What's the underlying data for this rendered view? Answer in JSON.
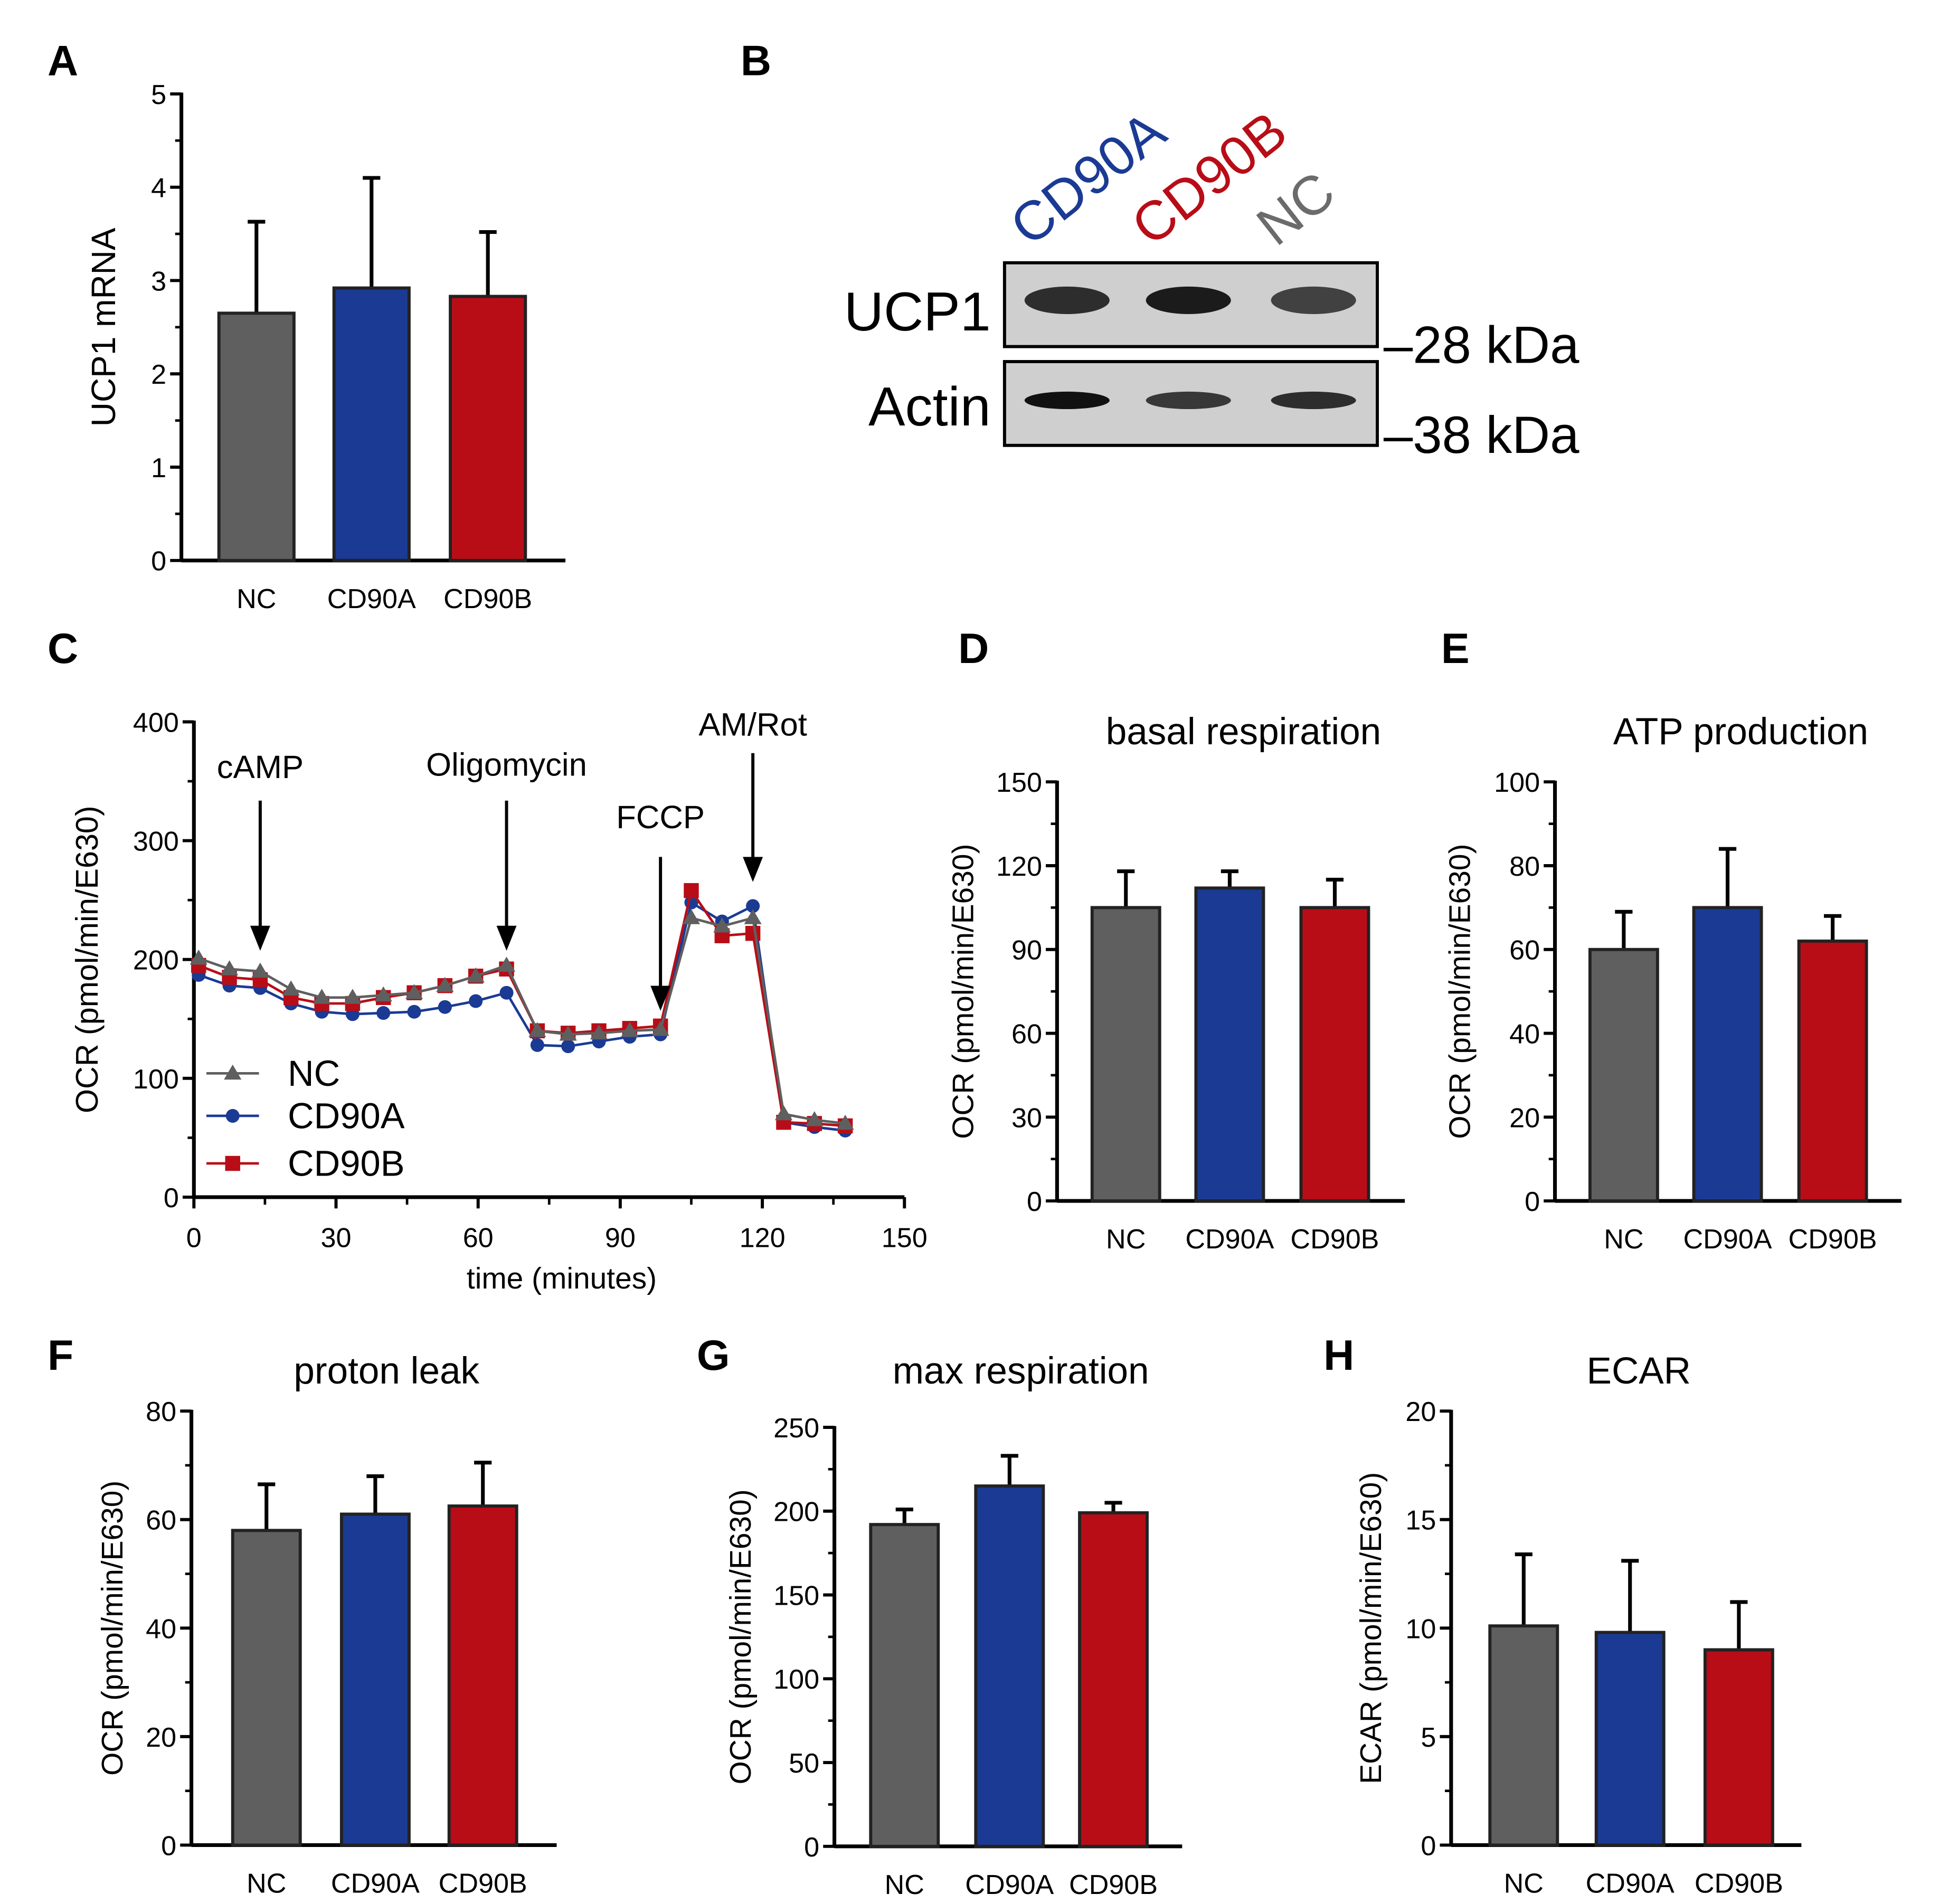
{
  "colors": {
    "NC": "#5f5f5f",
    "CD90A": "#1a3a94",
    "CD90B": "#b80d17",
    "NC_label": "#6b6b6b"
  },
  "panel_labels": [
    "A",
    "B",
    "C",
    "D",
    "E",
    "F",
    "G",
    "H"
  ],
  "western_blot": {
    "lanes": [
      "CD90A",
      "CD90B",
      "NC"
    ],
    "rows": [
      "UCP1",
      "Actin"
    ],
    "markers": [
      "–28 kDa",
      "–38 kDa"
    ]
  },
  "chart_data": [
    {
      "id": "A",
      "type": "bar",
      "title": "",
      "ylabel": "UCP1 mRNA",
      "xlabel": "",
      "categories": [
        "NC",
        "CD90A",
        "CD90B"
      ],
      "values": [
        2.65,
        2.92,
        2.83
      ],
      "error_upper": [
        3.63,
        4.1,
        3.52
      ],
      "ylim": [
        0,
        5
      ],
      "yticks": [
        "0",
        "1",
        "2",
        "3",
        "4",
        "5"
      ]
    },
    {
      "id": "C",
      "type": "line",
      "title": "",
      "ylabel": "OCR (pmol/min/E630)",
      "xlabel": "time (minutes)",
      "xlim": [
        0,
        150
      ],
      "ylim": [
        0,
        400
      ],
      "xticks": [
        "0",
        "30",
        "60",
        "90",
        "120",
        "150"
      ],
      "yticks": [
        "0",
        "100",
        "200",
        "300",
        "400"
      ],
      "x": [
        1,
        7.5,
        14,
        20.5,
        27,
        33.5,
        40,
        46.5,
        53,
        59.5,
        66,
        72.5,
        79,
        85.5,
        92,
        98.5,
        105,
        111.5,
        118,
        124.5,
        131,
        137.5
      ],
      "series": [
        {
          "name": "NC",
          "marker": "triangle",
          "values": [
            201,
            192,
            190,
            175,
            168,
            168,
            170,
            172,
            178,
            186,
            195,
            140,
            137,
            138,
            140,
            141,
            235,
            228,
            235,
            70,
            65,
            62
          ]
        },
        {
          "name": "CD90A",
          "marker": "circle",
          "values": [
            187,
            178,
            176,
            163,
            156,
            154,
            155,
            156,
            160,
            165,
            172,
            128,
            127,
            131,
            135,
            137,
            248,
            232,
            245,
            63,
            59,
            56
          ]
        },
        {
          "name": "CD90B",
          "marker": "square",
          "values": [
            195,
            185,
            183,
            168,
            163,
            163,
            168,
            172,
            178,
            186,
            192,
            140,
            138,
            140,
            142,
            144,
            258,
            220,
            222,
            63,
            62,
            60
          ]
        }
      ],
      "annotations": [
        {
          "text": "cAMP",
          "x": 14
        },
        {
          "text": "Oligomycin",
          "x": 66
        },
        {
          "text": "FCCP",
          "x": 98.5
        },
        {
          "text": "AM/Rot",
          "x": 118
        }
      ],
      "legend": "bottom-left"
    },
    {
      "id": "D",
      "type": "bar",
      "title": "basal respiration",
      "ylabel": "OCR (pmol/min/E630)",
      "categories": [
        "NC",
        "CD90A",
        "CD90B"
      ],
      "values": [
        105,
        112,
        105
      ],
      "error_upper": [
        118,
        118,
        115
      ],
      "ylim": [
        0,
        150
      ],
      "yticks": [
        "0",
        "30",
        "60",
        "90",
        "120",
        "150"
      ]
    },
    {
      "id": "E",
      "type": "bar",
      "title": "ATP production",
      "ylabel": "OCR (pmol/min/E630)",
      "categories": [
        "NC",
        "CD90A",
        "CD90B"
      ],
      "values": [
        60,
        70,
        62
      ],
      "error_upper": [
        69,
        84,
        68
      ],
      "ylim": [
        0,
        100
      ],
      "yticks": [
        "0",
        "20",
        "40",
        "60",
        "80",
        "100"
      ]
    },
    {
      "id": "F",
      "type": "bar",
      "title": "proton leak",
      "ylabel": "OCR (pmol/min/E630)",
      "categories": [
        "NC",
        "CD90A",
        "CD90B"
      ],
      "values": [
        58,
        61,
        62.5
      ],
      "error_upper": [
        66.5,
        68,
        70.5
      ],
      "ylim": [
        0,
        80
      ],
      "yticks": [
        "0",
        "20",
        "40",
        "60",
        "80"
      ]
    },
    {
      "id": "G",
      "type": "bar",
      "title": "max respiration",
      "ylabel": "OCR (pmol/min/E630)",
      "categories": [
        "NC",
        "CD90A",
        "CD90B"
      ],
      "values": [
        192,
        215,
        199
      ],
      "error_upper": [
        201,
        233,
        205
      ],
      "ylim": [
        0,
        250
      ],
      "yticks": [
        "0",
        "50",
        "100",
        "150",
        "200",
        "250"
      ]
    },
    {
      "id": "H",
      "type": "bar",
      "title": "ECAR",
      "ylabel": "ECAR (pmol/min/E630)",
      "categories": [
        "NC",
        "CD90A",
        "CD90B"
      ],
      "values": [
        10.1,
        9.8,
        9.0
      ],
      "error_upper": [
        13.4,
        13.1,
        11.2
      ],
      "ylim": [
        0,
        20
      ],
      "yticks": [
        "0",
        "5",
        "10",
        "15",
        "20"
      ]
    }
  ]
}
